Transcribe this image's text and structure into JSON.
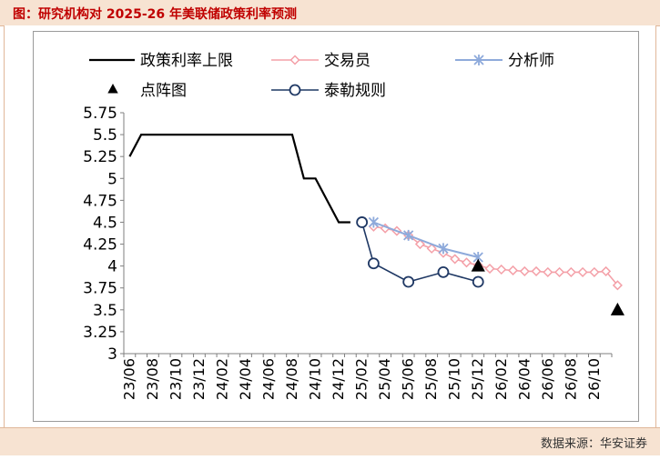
{
  "header": {
    "title": "图：研究机构对 2025-26 年美联储政策利率预测"
  },
  "footer": {
    "source": "数据来源：华安证券"
  },
  "colors": {
    "policy": "#000000",
    "trader": "#f4a0a8",
    "analyst": "#8eaadb",
    "dot": "#000000",
    "taylor": "#1f3864",
    "title": "#c00000"
  },
  "chart_data": {
    "type": "line",
    "xlabel": "",
    "ylabel": "",
    "ylim": [
      3,
      5.75
    ],
    "yticks": [
      "5.75",
      "5.5",
      "5.25",
      "5",
      "4.75",
      "4.5",
      "4.25",
      "4",
      "3.75",
      "3.5",
      "3.25",
      "3"
    ],
    "xticks": [
      "23/06",
      "23/08",
      "23/10",
      "23/12",
      "24/02",
      "24/04",
      "24/06",
      "24/08",
      "24/10",
      "24/12",
      "25/02",
      "25/04",
      "25/06",
      "25/08",
      "25/10",
      "25/12",
      "26/02",
      "26/04",
      "26/06",
      "26/08",
      "26/10"
    ],
    "x_start": "23/06",
    "legend": [
      {
        "key": "policy",
        "label": "政策利率上限"
      },
      {
        "key": "trader",
        "label": "交易员"
      },
      {
        "key": "analyst",
        "label": "分析师"
      },
      {
        "key": "dot",
        "label": "点阵图"
      },
      {
        "key": "taylor",
        "label": "泰勒规则"
      }
    ],
    "series": [
      {
        "key": "policy",
        "name": "政策利率上限",
        "style": "line",
        "points": [
          [
            "23/06",
            5.25
          ],
          [
            "23/07",
            5.5
          ],
          [
            "24/08",
            5.5
          ],
          [
            "24/09",
            5.0
          ],
          [
            "24/10",
            5.0
          ],
          [
            "24/11",
            4.75
          ],
          [
            "24/12",
            4.5
          ],
          [
            "25/01",
            4.5
          ]
        ]
      },
      {
        "key": "trader",
        "name": "交易员",
        "style": "diamond",
        "points": [
          [
            "25/03",
            4.45
          ],
          [
            "25/04",
            4.43
          ],
          [
            "25/05",
            4.4
          ],
          [
            "25/06",
            4.35
          ],
          [
            "25/07",
            4.25
          ],
          [
            "25/08",
            4.2
          ],
          [
            "25/09",
            4.15
          ],
          [
            "25/10",
            4.08
          ],
          [
            "25/11",
            4.04
          ],
          [
            "25/12",
            4.01
          ],
          [
            "26/01",
            3.97
          ],
          [
            "26/02",
            3.96
          ],
          [
            "26/03",
            3.95
          ],
          [
            "26/04",
            3.94
          ],
          [
            "26/05",
            3.94
          ],
          [
            "26/06",
            3.93
          ],
          [
            "26/07",
            3.93
          ],
          [
            "26/08",
            3.93
          ],
          [
            "26/09",
            3.93
          ],
          [
            "26/10",
            3.93
          ],
          [
            "26/11",
            3.94
          ],
          [
            "26/12",
            3.78
          ]
        ]
      },
      {
        "key": "analyst",
        "name": "分析师",
        "style": "star",
        "points": [
          [
            "25/03",
            4.5
          ],
          [
            "25/06",
            4.35
          ],
          [
            "25/09",
            4.2
          ],
          [
            "25/12",
            4.1
          ]
        ]
      },
      {
        "key": "dot",
        "name": "点阵图",
        "style": "triangle",
        "points": [
          [
            "25/12",
            4.0
          ],
          [
            "26/12",
            3.5
          ]
        ]
      },
      {
        "key": "taylor",
        "name": "泰勒规则",
        "style": "circle",
        "points": [
          [
            "25/02",
            4.5
          ],
          [
            "25/03",
            4.03
          ],
          [
            "25/06",
            3.82
          ],
          [
            "25/09",
            3.93
          ],
          [
            "25/12",
            3.82
          ]
        ]
      }
    ]
  }
}
